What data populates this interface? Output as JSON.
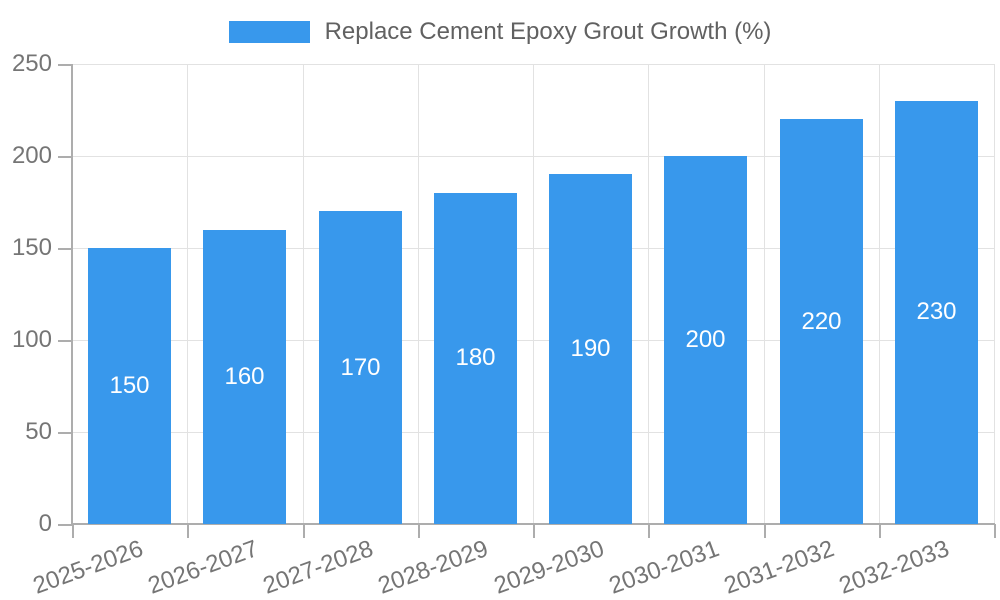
{
  "chart_data": {
    "type": "bar",
    "legend": {
      "label": "Replace Cement Epoxy Grout Growth (%)",
      "position": "top-center"
    },
    "series": [
      {
        "name": "Replace Cement Epoxy Grout Growth (%)",
        "values": [
          150,
          160,
          170,
          180,
          190,
          200,
          220,
          230
        ]
      }
    ],
    "categories": [
      "2025-2026",
      "2026-2027",
      "2027-2028",
      "2028-2029",
      "2029-2030",
      "2030-2031",
      "2031-2032",
      "2032-2033"
    ],
    "values": [
      150,
      160,
      170,
      180,
      190,
      200,
      220,
      230
    ],
    "value_labels": [
      "150",
      "160",
      "170",
      "180",
      "190",
      "200",
      "220",
      "230"
    ],
    "xlabel": "",
    "ylabel": "",
    "ylim": [
      0,
      250
    ],
    "yticks": [
      0,
      50,
      100,
      150,
      200,
      250
    ],
    "ytick_labels": [
      "0",
      "50",
      "100",
      "150",
      "200",
      "250"
    ],
    "grid": true,
    "colors": {
      "bar": "#3898ec",
      "value_label": "#ffffff",
      "grid": "#e2e2e2",
      "axis": "#adadad",
      "tick_label": "#757575",
      "legend_text": "#616161",
      "background": "#ffffff"
    }
  }
}
